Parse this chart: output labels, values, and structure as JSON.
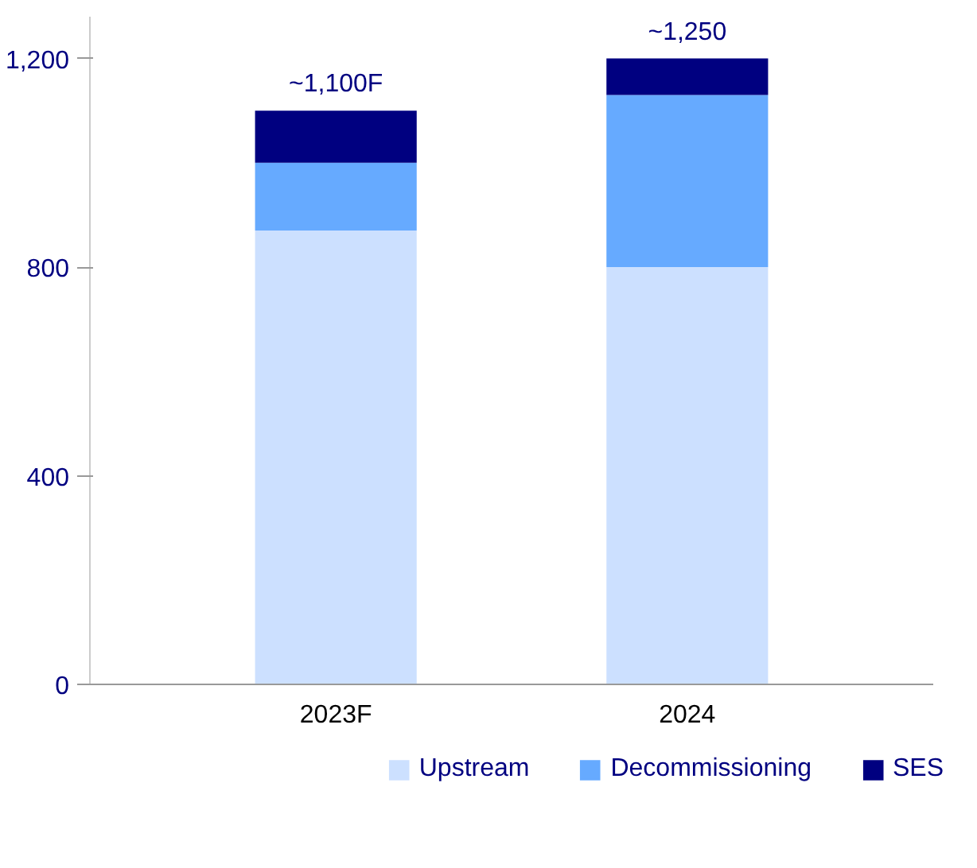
{
  "chart_data": {
    "type": "bar",
    "stacked": true,
    "categories": [
      "2023F",
      "2024"
    ],
    "series": [
      {
        "name": "Upstream",
        "color": "#cce0ff",
        "values": [
          870,
          800
        ]
      },
      {
        "name": "Decommissioning",
        "color": "#66aaff",
        "values": [
          130,
          330
        ]
      },
      {
        "name": "SES",
        "color": "#000080",
        "values": [
          100,
          70
        ]
      }
    ],
    "ylim": [
      0,
      1280
    ],
    "yticks": [
      {
        "value": 0,
        "label": "0"
      },
      {
        "value": 400,
        "label": "400"
      },
      {
        "value": 800,
        "label": "800"
      },
      {
        "value": 1200,
        "label": "1,200"
      }
    ],
    "annotations": [
      {
        "text": "~1,100F",
        "x": "2023F",
        "y": 1100
      },
      {
        "text": "~1,250",
        "x": "2024",
        "y": 1200
      }
    ],
    "legend": "bottom"
  }
}
